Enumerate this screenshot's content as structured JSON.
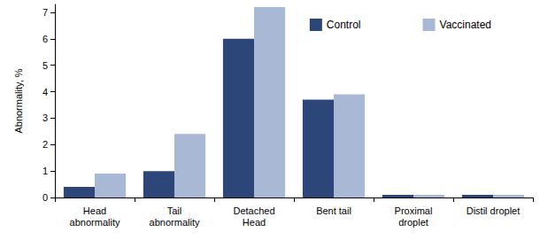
{
  "chart_data": {
    "type": "bar",
    "y_label": "Abnormality, %",
    "categories": [
      "Head\nabnormality",
      "Tail\nabnormality",
      "Detached\nHead",
      "Bent tail",
      "Proximal\ndroplet",
      "Distil droplet"
    ],
    "series": [
      {
        "name": "Control",
        "color": "#2d4679",
        "values": [
          0.4,
          1.0,
          6.0,
          3.7,
          0.1,
          0.1
        ]
      },
      {
        "name": "Vaccinated",
        "color": "#a9b8d4",
        "values": [
          0.9,
          2.4,
          7.2,
          3.9,
          0.1,
          0.1
        ]
      }
    ],
    "ylim": [
      0,
      7.3
    ],
    "yticks": [
      0,
      1,
      2,
      3,
      4,
      5,
      6,
      7
    ],
    "grid": false,
    "legend": "top-right"
  }
}
